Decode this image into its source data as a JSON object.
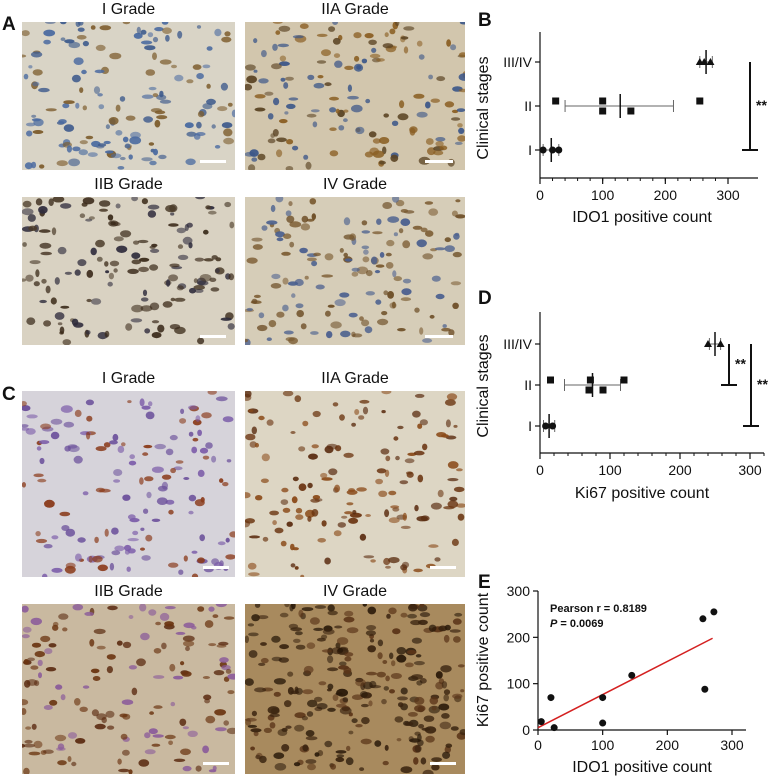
{
  "panels": {
    "A": {
      "letter": "A",
      "tiles": [
        {
          "label": "I Grade",
          "bg": "#d9d4c6",
          "cells": [
            "#3d5a8c",
            "#7b5a2a",
            "#4a6aa0"
          ]
        },
        {
          "label": "IIA Grade",
          "bg": "#d2c6ad",
          "cells": [
            "#3a5588",
            "#8a5e22",
            "#5b4424"
          ]
        },
        {
          "label": "IIB Grade",
          "bg": "#d9d2c2",
          "cells": [
            "#3a2a1a",
            "#4a3a28",
            "#2f2c3c"
          ]
        },
        {
          "label": "IV Grade",
          "bg": "#d6cdb8",
          "cells": [
            "#7a5a30",
            "#4a5f8e",
            "#6a4a22"
          ]
        }
      ]
    },
    "C": {
      "letter": "C",
      "tiles": [
        {
          "label": "I Grade",
          "bg": "#d6d3da",
          "cells": [
            "#7a5aa8",
            "#8a3a1a",
            "#6a4e9a"
          ]
        },
        {
          "label": "IIA Grade",
          "bg": "#ddd6c4",
          "cells": [
            "#6a3410",
            "#8a4a18",
            "#5a2c10"
          ]
        },
        {
          "label": "IIB Grade",
          "bg": "#c9b9a0",
          "cells": [
            "#6a3410",
            "#8a5a9a",
            "#5a2a10"
          ]
        },
        {
          "label": "IV Grade",
          "bg": "#a88a5e",
          "cells": [
            "#3a2410",
            "#5a3418",
            "#2a1a0a"
          ]
        }
      ]
    },
    "B": {
      "letter": "B",
      "chart_data": {
        "type": "scatter",
        "xlabel": "IDO1 positive count",
        "ylabel": "Clinical stages",
        "xlim": [
          0,
          300
        ],
        "xticks": [
          "0",
          "100",
          "200",
          "300"
        ],
        "categories": [
          "I",
          "II",
          "III/IV"
        ],
        "groups": [
          {
            "category": "I",
            "points": [
              5,
              20,
              30
            ],
            "marker": "circle",
            "mean": 18,
            "err": [
              5,
              30
            ]
          },
          {
            "category": "II",
            "points": [
              25,
              100,
              100,
              145,
              255
            ],
            "marker": "square",
            "mean": 128,
            "err": [
              40,
              213
            ]
          },
          {
            "category": "III/IV",
            "points": [
              255,
              262,
              272
            ],
            "marker": "triangle",
            "mean": 265,
            "err": [
              255,
              275
            ]
          }
        ],
        "significance": [
          {
            "from": "I",
            "to": "III/IV",
            "label": "**"
          }
        ]
      }
    },
    "D": {
      "letter": "D",
      "chart_data": {
        "type": "scatter",
        "xlabel": "Ki67 positive count",
        "ylabel": "Clinical stages",
        "xlim": [
          0,
          320
        ],
        "xticks": [
          "0",
          "100",
          "200",
          "300"
        ],
        "categories": [
          "I",
          "II",
          "III/IV"
        ],
        "groups": [
          {
            "category": "I",
            "points": [
              8,
              18
            ],
            "marker": "circle",
            "mean": 13,
            "err": [
              5,
              21
            ]
          },
          {
            "category": "II",
            "points": [
              15,
              70,
              72,
              90,
              120
            ],
            "marker": "square",
            "mean": 75,
            "err": [
              35,
              115
            ]
          },
          {
            "category": "III/IV",
            "points": [
              240,
              258
            ],
            "marker": "triangle",
            "mean": 250,
            "err": [
              242,
              258
            ]
          }
        ],
        "significance": [
          {
            "from": "II",
            "to": "III/IV",
            "label": "**"
          },
          {
            "from": "I",
            "to": "III/IV",
            "label": "**"
          }
        ]
      }
    },
    "E": {
      "letter": "E",
      "chart_data": {
        "type": "scatter",
        "xlabel": "IDO1 positive count",
        "ylabel": "Ki67 positive count",
        "xlim": [
          0,
          300
        ],
        "ylim": [
          0,
          300
        ],
        "xticks": [
          "0",
          "100",
          "200",
          "300"
        ],
        "yticks": [
          "0",
          "100",
          "200",
          "300"
        ],
        "points": [
          [
            5,
            18
          ],
          [
            20,
            70
          ],
          [
            25,
            5
          ],
          [
            100,
            70
          ],
          [
            100,
            15
          ],
          [
            145,
            118
          ],
          [
            255,
            240
          ],
          [
            258,
            88
          ],
          [
            272,
            255
          ]
        ],
        "fit": {
          "x": [
            0,
            270
          ],
          "y": [
            5,
            198
          ],
          "color": "#d42020"
        },
        "annotation_r": "Pearson r = 0.8189",
        "annotation_p_label": "P",
        "annotation_p_value": " = 0.0069"
      }
    }
  }
}
